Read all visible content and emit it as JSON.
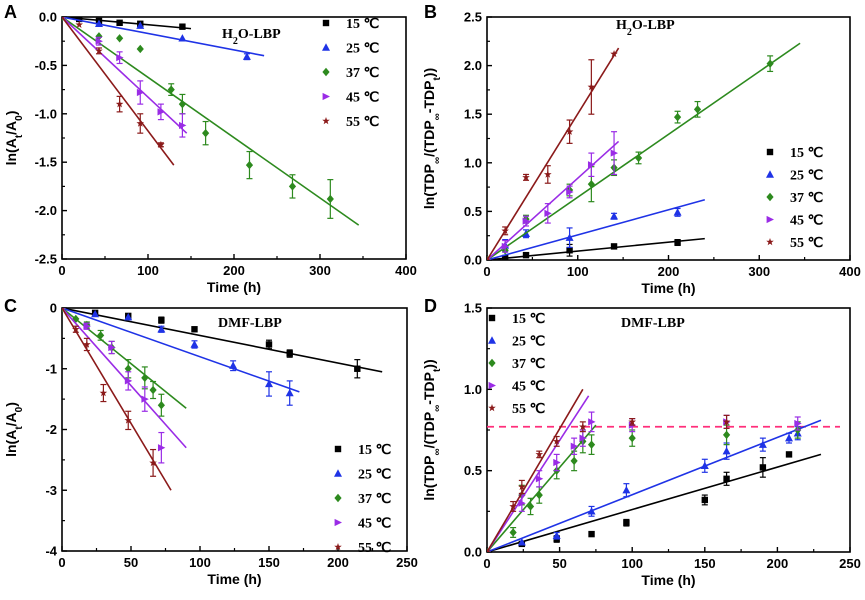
{
  "colors": {
    "15": "#000000",
    "25": "#1f33e6",
    "37": "#2d8a1e",
    "45": "#9a2ce6",
    "55": "#8b1a1a",
    "plateau": "#ff2f7a"
  },
  "legend_labels": [
    "15 ℃",
    "25 ℃",
    "37 ℃",
    "45 ℃",
    "55 ℃"
  ],
  "chart_data": [
    {
      "panel": "A",
      "type": "scatter",
      "annotation": "H2O-LBP",
      "xlabel": "Time (h)",
      "ylabel": "ln(At/A0)",
      "xlim": [
        0,
        400
      ],
      "ylim": [
        -2.5,
        0.0
      ],
      "xticks": [
        0,
        100,
        200,
        300,
        400
      ],
      "xtick_labels": [
        "0",
        "100",
        "200",
        "300",
        "400"
      ],
      "yticks": [
        0.0,
        -0.5,
        -1.0,
        -1.5,
        -2.0,
        -2.5
      ],
      "ytick_labels": [
        "0.0",
        "-0.5",
        "-1.0",
        "-1.5",
        "-2.0",
        "-2.5"
      ],
      "legend_position": "top-right",
      "series": [
        {
          "name": "15 ℃",
          "marker": "square",
          "x": [
            0,
            20,
            43,
            67,
            91,
            140
          ],
          "y": [
            0,
            -0.02,
            -0.04,
            -0.06,
            -0.07,
            -0.1
          ],
          "err": [
            0,
            0,
            0,
            0,
            0,
            0
          ],
          "fit": [
            [
              0,
              0
            ],
            [
              150,
              -0.12
            ]
          ]
        },
        {
          "name": "25 ℃",
          "marker": "triangle",
          "x": [
            0,
            43,
            91,
            140,
            215
          ],
          "y": [
            0,
            -0.07,
            -0.09,
            -0.22,
            -0.41
          ],
          "err": [
            0,
            0,
            0,
            0,
            0.03
          ],
          "fit": [
            [
              0,
              0
            ],
            [
              235,
              -0.4
            ]
          ]
        },
        {
          "name": "37 ℃",
          "marker": "diamond",
          "x": [
            0,
            43,
            67,
            91,
            127,
            140,
            167,
            218,
            268,
            312
          ],
          "y": [
            0,
            -0.2,
            -0.22,
            -0.33,
            -0.75,
            -0.9,
            -1.2,
            -1.53,
            -1.75,
            -1.88
          ],
          "err": [
            0,
            0,
            0,
            0,
            0.06,
            0.1,
            0.12,
            0.14,
            0.12,
            0.2
          ],
          "fit": [
            [
              0,
              0
            ],
            [
              345,
              -2.15
            ]
          ]
        },
        {
          "name": "45 ℃",
          "marker": "tri-right",
          "x": [
            0,
            43,
            67,
            91,
            115,
            140
          ],
          "y": [
            0,
            -0.25,
            -0.42,
            -0.78,
            -0.98,
            -1.12
          ],
          "err": [
            0,
            0.04,
            0.06,
            0.12,
            0.08,
            0.12
          ],
          "fit": [
            [
              0,
              0
            ],
            [
              145,
              -1.2
            ]
          ]
        },
        {
          "name": "55 ℃",
          "marker": "star",
          "x": [
            0,
            20,
            43,
            67,
            91,
            115
          ],
          "y": [
            0,
            -0.08,
            -0.35,
            -0.9,
            -1.1,
            -1.32
          ],
          "err": [
            0,
            0,
            0.03,
            0.08,
            0.1,
            0.02
          ],
          "fit": [
            [
              0,
              0
            ],
            [
              130,
              -1.53
            ]
          ]
        }
      ]
    },
    {
      "panel": "B",
      "type": "scatter",
      "annotation": "H2O-LBP",
      "xlabel": "Time (h)",
      "ylabel": "ln(TDP∞/(TDP∞-TDPt))",
      "xlim": [
        0,
        400
      ],
      "ylim": [
        0.0,
        2.5
      ],
      "xticks": [
        0,
        100,
        200,
        300,
        400
      ],
      "xtick_labels": [
        "0",
        "100",
        "200",
        "300",
        "400"
      ],
      "yticks": [
        0.0,
        0.5,
        1.0,
        1.5,
        2.0,
        2.5
      ],
      "ytick_labels": [
        "0.0",
        "0.5",
        "1.0",
        "1.5",
        "2.0",
        "2.5"
      ],
      "legend_position": "right",
      "series": [
        {
          "name": "15 ℃",
          "marker": "square",
          "x": [
            0,
            20,
            43,
            91,
            140,
            210
          ],
          "y": [
            0,
            0.02,
            0.05,
            0.1,
            0.14,
            0.18
          ],
          "err": [
            0,
            0,
            0,
            0.06,
            0,
            0.03
          ],
          "fit": [
            [
              0,
              0
            ],
            [
              240,
              0.22
            ]
          ]
        },
        {
          "name": "25 ℃",
          "marker": "triangle",
          "x": [
            0,
            20,
            43,
            91,
            140,
            210
          ],
          "y": [
            0,
            0.15,
            0.27,
            0.23,
            0.45,
            0.49
          ],
          "err": [
            0,
            0.06,
            0.04,
            0.1,
            0.03,
            0.04
          ],
          "fit": [
            [
              0,
              0
            ],
            [
              240,
              0.62
            ]
          ]
        },
        {
          "name": "37 ℃",
          "marker": "diamond",
          "x": [
            0,
            20,
            43,
            91,
            115,
            140,
            167,
            210,
            232,
            312
          ],
          "y": [
            0,
            0.1,
            0.42,
            0.72,
            0.78,
            0.95,
            1.05,
            1.47,
            1.55,
            2.02
          ],
          "err": [
            0,
            0,
            0.04,
            0.06,
            0.18,
            0.08,
            0.06,
            0.06,
            0.08,
            0.08
          ],
          "fit": [
            [
              0,
              0
            ],
            [
              345,
              2.23
            ]
          ]
        },
        {
          "name": "45 ℃",
          "marker": "tri-right",
          "x": [
            0,
            20,
            43,
            67,
            91,
            115,
            140
          ],
          "y": [
            0,
            0.14,
            0.4,
            0.48,
            0.7,
            0.98,
            1.1
          ],
          "err": [
            0,
            0.06,
            0.05,
            0.1,
            0.06,
            0.12,
            0.22
          ],
          "fit": [
            [
              0,
              0
            ],
            [
              145,
              1.22
            ]
          ]
        },
        {
          "name": "55 ℃",
          "marker": "star",
          "x": [
            0,
            20,
            43,
            67,
            91,
            115,
            140
          ],
          "y": [
            0,
            0.3,
            0.85,
            0.88,
            1.32,
            1.78,
            2.12
          ],
          "err": [
            0,
            0.04,
            0.03,
            0.09,
            0.12,
            0.28,
            0
          ],
          "fit": [
            [
              0,
              0
            ],
            [
              145,
              2.18
            ]
          ]
        }
      ]
    },
    {
      "panel": "C",
      "type": "scatter",
      "annotation": "DMF-LBP",
      "xlabel": "Time (h)",
      "ylabel": "ln(At/A0)",
      "xlim": [
        0,
        250
      ],
      "ylim": [
        -4,
        0
      ],
      "xticks": [
        0,
        50,
        100,
        150,
        200,
        250
      ],
      "xtick_labels": [
        "0",
        "50",
        "100",
        "150",
        "200",
        "250"
      ],
      "yticks": [
        0,
        -1,
        -2,
        -3,
        -4
      ],
      "ytick_labels": [
        "0",
        "-1",
        "-2",
        "-3",
        "-4"
      ],
      "legend_position": "bottom-right",
      "series": [
        {
          "name": "15 ℃",
          "marker": "square",
          "x": [
            0,
            24,
            48,
            72,
            96,
            150,
            165,
            214
          ],
          "y": [
            0,
            -0.08,
            -0.13,
            -0.2,
            -0.35,
            -0.6,
            -0.75,
            -1.0
          ],
          "err": [
            0,
            0,
            0,
            0.05,
            0,
            0.07,
            0.06,
            0.15
          ],
          "fit": [
            [
              0,
              0
            ],
            [
              232,
              -1.05
            ]
          ]
        },
        {
          "name": "25 ℃",
          "marker": "triangle",
          "x": [
            0,
            24,
            48,
            72,
            96,
            124,
            150,
            165
          ],
          "y": [
            0,
            -0.1,
            -0.15,
            -0.35,
            -0.6,
            -0.95,
            -1.25,
            -1.4
          ],
          "err": [
            0,
            0,
            0,
            0.05,
            0.06,
            0.08,
            0.2,
            0.2
          ],
          "fit": [
            [
              0,
              0
            ],
            [
              172,
              -1.38
            ]
          ]
        },
        {
          "name": "37 ℃",
          "marker": "diamond",
          "x": [
            0,
            10,
            18,
            28,
            36,
            48,
            60,
            66,
            72
          ],
          "y": [
            0,
            -0.18,
            -0.28,
            -0.45,
            -0.65,
            -1.0,
            -1.15,
            -1.35,
            -1.6
          ],
          "err": [
            0,
            0,
            0.05,
            0.08,
            0.1,
            0.15,
            0.18,
            0.14,
            0.18
          ],
          "fit": [
            [
              0,
              0
            ],
            [
              90,
              -1.65
            ]
          ]
        },
        {
          "name": "45 ℃",
          "marker": "tri-right",
          "x": [
            0,
            18,
            36,
            48,
            60,
            72
          ],
          "y": [
            0,
            -0.3,
            -0.65,
            -1.2,
            -1.5,
            -2.3
          ],
          "err": [
            0,
            0.05,
            0.1,
            0.15,
            0.2,
            0.25
          ],
          "fit": [
            [
              0,
              0
            ],
            [
              90,
              -2.3
            ]
          ]
        },
        {
          "name": "55 ℃",
          "marker": "star",
          "x": [
            0,
            10,
            18,
            30,
            48,
            66
          ],
          "y": [
            0,
            -0.35,
            -0.6,
            -1.4,
            -1.85,
            -2.55
          ],
          "err": [
            0,
            0.05,
            0.1,
            0.14,
            0.15,
            0.22
          ],
          "fit": [
            [
              0,
              0
            ],
            [
              79,
              -3.0
            ]
          ]
        }
      ]
    },
    {
      "panel": "D",
      "type": "scatter",
      "annotation": "DMF-LBP",
      "xlabel": "Time (h)",
      "ylabel": "ln(TDP∞/(TDP∞-TDPt))",
      "xlim": [
        0,
        250
      ],
      "ylim": [
        0.0,
        1.5
      ],
      "xticks": [
        0,
        50,
        100,
        150,
        200,
        250
      ],
      "xtick_labels": [
        "0",
        "50",
        "100",
        "150",
        "200",
        "250"
      ],
      "yticks": [
        0.0,
        0.5,
        1.0,
        1.5
      ],
      "ytick_labels": [
        "0.0",
        "0.5",
        "1.0",
        "1.5"
      ],
      "legend_position": "top-left",
      "reference_line": {
        "y": 0.77,
        "style": "dashed"
      },
      "series": [
        {
          "name": "15 ℃",
          "marker": "square",
          "x": [
            0,
            24,
            48,
            72,
            96,
            150,
            165,
            190,
            208
          ],
          "y": [
            0,
            0.05,
            0.08,
            0.11,
            0.18,
            0.32,
            0.45,
            0.52,
            0.6
          ],
          "err": [
            0,
            0,
            0.02,
            0,
            0.02,
            0.03,
            0.04,
            0.06,
            0
          ],
          "fit": [
            [
              0,
              0
            ],
            [
              230,
              0.6
            ]
          ]
        },
        {
          "name": "25 ℃",
          "marker": "triangle",
          "x": [
            0,
            24,
            48,
            72,
            96,
            150,
            165,
            190,
            208,
            214
          ],
          "y": [
            0,
            0.06,
            0.1,
            0.25,
            0.38,
            0.53,
            0.62,
            0.66,
            0.7,
            0.73
          ],
          "err": [
            0,
            0,
            0.02,
            0.03,
            0.04,
            0.04,
            0.05,
            0.04,
            0.03,
            0.04
          ],
          "fit": [
            [
              0,
              0
            ],
            [
              230,
              0.81
            ]
          ]
        },
        {
          "name": "37 ℃",
          "marker": "diamond",
          "x": [
            0,
            18,
            24,
            30,
            36,
            48,
            60,
            66,
            72,
            100,
            165,
            214
          ],
          "y": [
            0,
            0.12,
            0.35,
            0.28,
            0.35,
            0.5,
            0.56,
            0.68,
            0.66,
            0.7,
            0.72,
            0.75
          ],
          "err": [
            0,
            0.03,
            0.06,
            0.05,
            0.05,
            0.05,
            0.06,
            0.07,
            0.06,
            0.05,
            0.06,
            0.05
          ],
          "fit": [
            [
              0,
              0
            ],
            [
              75,
              0.78
            ]
          ]
        },
        {
          "name": "45 ℃",
          "marker": "tri-right",
          "x": [
            0,
            24,
            36,
            48,
            60,
            66,
            72,
            100,
            165,
            214
          ],
          "y": [
            0,
            0.3,
            0.45,
            0.55,
            0.65,
            0.7,
            0.8,
            0.78,
            0.8,
            0.79
          ],
          "err": [
            0,
            0.05,
            0.05,
            0.05,
            0.05,
            0.05,
            0.06,
            0.04,
            0.04,
            0.04
          ],
          "fit": [
            [
              0,
              0
            ],
            [
              70,
              0.96
            ]
          ]
        },
        {
          "name": "55 ℃",
          "marker": "star",
          "x": [
            0,
            18,
            24,
            36,
            48,
            66,
            100,
            165
          ],
          "y": [
            0,
            0.28,
            0.4,
            0.6,
            0.68,
            0.77,
            0.8,
            0.8
          ],
          "err": [
            0,
            0.03,
            0.04,
            0.02,
            0.03,
            0.03,
            0.02,
            0.04
          ],
          "fit": [
            [
              0,
              0
            ],
            [
              66,
              1.0
            ]
          ]
        }
      ]
    }
  ]
}
